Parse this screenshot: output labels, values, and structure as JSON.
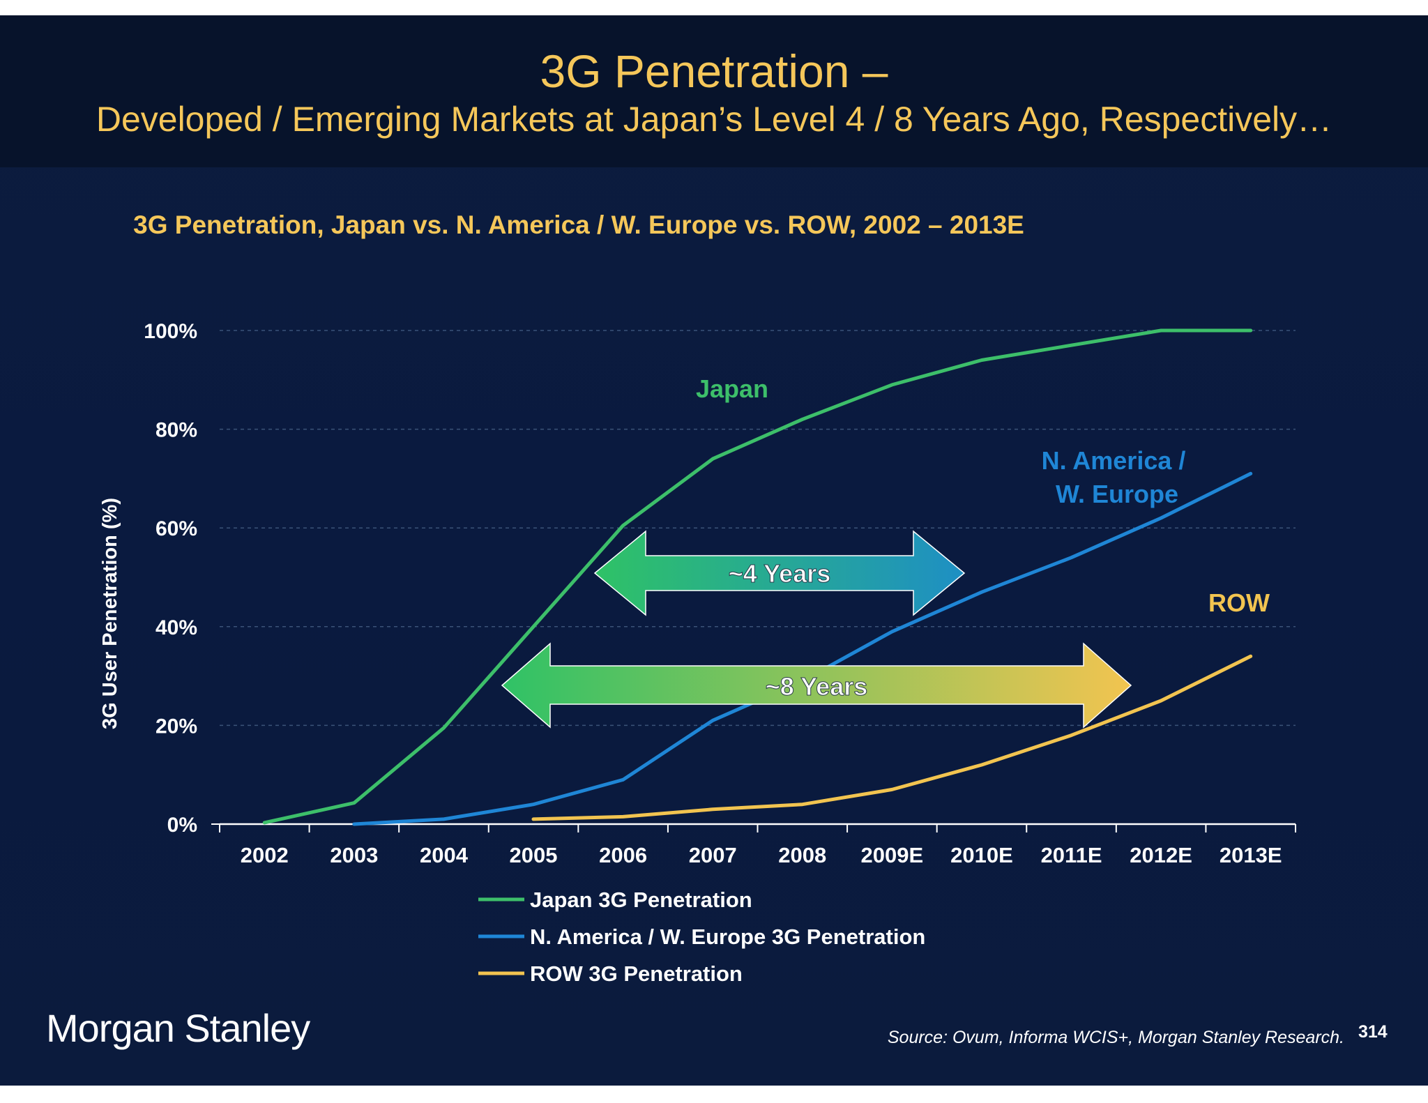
{
  "header": {
    "title": "3G Penetration –",
    "subtitle": "Developed / Emerging Markets at Japan’s Level 4 / 8 Years Ago, Respectively…"
  },
  "footer": {
    "logo": "Morgan Stanley",
    "source": "Source: Ovum, Informa WCIS+, Morgan Stanley Research.",
    "page_number": "314"
  },
  "colors": {
    "background": "#0b1b3d",
    "header_bg": "#07132b",
    "title": "#f5c75a",
    "japan": "#3dbf6a",
    "na_we": "#1f86d6",
    "row": "#f2c450",
    "text": "#ffffff"
  },
  "chart_data": {
    "type": "line",
    "title": "3G Penetration, Japan vs. N. America / W. Europe vs. ROW, 2002 – 2013E",
    "xlabel": "",
    "ylabel": "3G User Penetration (%)",
    "categories": [
      "2002",
      "2003",
      "2004",
      "2005",
      "2006",
      "2007",
      "2008",
      "2009E",
      "2010E",
      "2011E",
      "2012E",
      "2013E"
    ],
    "ylim": [
      0,
      100
    ],
    "yticks": [
      0,
      20,
      40,
      60,
      80,
      100
    ],
    "ytick_labels": [
      "0%",
      "20%",
      "40%",
      "60%",
      "80%",
      "100%"
    ],
    "grid": true,
    "series": [
      {
        "name": "Japan 3G Penetration",
        "color": "#3dbf6a",
        "values": [
          0.3,
          4.3,
          19.5,
          40,
          60.5,
          74,
          82,
          89,
          94,
          97,
          100,
          100
        ]
      },
      {
        "name": "N. America / W. Europe 3G Penetration",
        "color": "#1f86d6",
        "values": [
          null,
          0,
          1,
          4,
          9,
          21,
          29,
          39,
          47,
          54,
          62,
          71
        ]
      },
      {
        "name": "ROW 3G Penetration",
        "color": "#f2c450",
        "values": [
          null,
          null,
          null,
          1,
          1.5,
          3,
          4,
          7,
          12,
          18,
          25,
          34
        ]
      }
    ],
    "annotations": [
      {
        "text": "Japan",
        "color": "#3dbf6a"
      },
      {
        "text": "N. America / W. Europe",
        "lines": [
          "N. America /",
          "W. Europe"
        ],
        "color": "#1f86d6"
      },
      {
        "text": "ROW",
        "color": "#f2c450"
      },
      {
        "text": "~4 Years",
        "from_color": "#2fc266",
        "to_color": "#1e8fc4"
      },
      {
        "text": "~8 Years",
        "from_color": "#2fc266",
        "to_color": "#f2c450"
      }
    ],
    "legend": {
      "placement": "bottom",
      "entries": [
        "Japan 3G Penetration",
        "N. America / W. Europe 3G Penetration",
        "ROW 3G Penetration"
      ]
    }
  }
}
